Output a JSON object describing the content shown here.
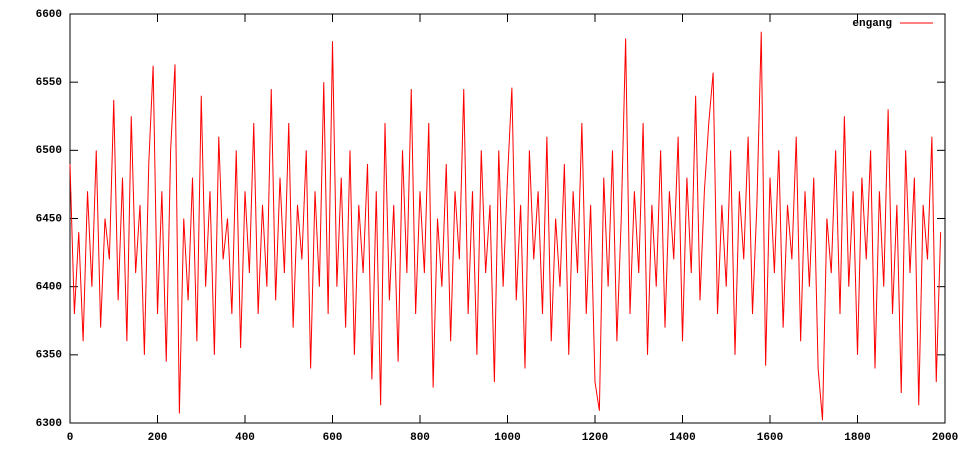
{
  "chart_data": {
    "type": "line",
    "x": [
      0,
      10,
      20,
      30,
      40,
      50,
      60,
      70,
      80,
      90,
      100,
      110,
      120,
      130,
      140,
      150,
      160,
      170,
      180,
      190,
      200,
      210,
      220,
      230,
      240,
      250,
      260,
      270,
      280,
      290,
      300,
      310,
      320,
      330,
      340,
      350,
      360,
      370,
      380,
      390,
      400,
      410,
      420,
      430,
      440,
      450,
      460,
      470,
      480,
      490,
      500,
      510,
      520,
      530,
      540,
      550,
      560,
      570,
      580,
      590,
      600,
      610,
      620,
      630,
      640,
      650,
      660,
      670,
      680,
      690,
      700,
      710,
      720,
      730,
      740,
      750,
      760,
      770,
      780,
      790,
      800,
      810,
      820,
      830,
      840,
      850,
      860,
      870,
      880,
      890,
      900,
      910,
      920,
      930,
      940,
      950,
      960,
      970,
      980,
      990,
      1000,
      1010,
      1020,
      1030,
      1040,
      1050,
      1060,
      1070,
      1080,
      1090,
      1100,
      1110,
      1120,
      1130,
      1140,
      1150,
      1160,
      1170,
      1180,
      1190,
      1200,
      1210,
      1220,
      1230,
      1240,
      1250,
      1260,
      1270,
      1280,
      1290,
      1300,
      1310,
      1320,
      1330,
      1340,
      1350,
      1360,
      1370,
      1380,
      1390,
      1400,
      1410,
      1420,
      1430,
      1440,
      1450,
      1460,
      1470,
      1480,
      1490,
      1500,
      1510,
      1520,
      1530,
      1540,
      1550,
      1560,
      1570,
      1580,
      1590,
      1600,
      1610,
      1620,
      1630,
      1640,
      1650,
      1660,
      1670,
      1680,
      1690,
      1700,
      1710,
      1720,
      1730,
      1740,
      1750,
      1760,
      1770,
      1780,
      1790,
      1800,
      1810,
      1820,
      1830,
      1840,
      1850,
      1860,
      1870,
      1880,
      1890,
      1900,
      1910,
      1920,
      1930,
      1940,
      1950,
      1960,
      1970,
      1980,
      1990
    ],
    "series": [
      {
        "name": "engang",
        "color": "#ff0000",
        "values": [
          6490,
          6380,
          6440,
          6360,
          6470,
          6400,
          6500,
          6370,
          6450,
          6420,
          6537,
          6390,
          6480,
          6360,
          6525,
          6410,
          6460,
          6350,
          6490,
          6562,
          6380,
          6470,
          6345,
          6500,
          6563,
          6307,
          6450,
          6390,
          6480,
          6360,
          6540,
          6400,
          6470,
          6350,
          6510,
          6420,
          6450,
          6380,
          6500,
          6355,
          6470,
          6410,
          6520,
          6380,
          6460,
          6400,
          6545,
          6390,
          6480,
          6410,
          6520,
          6370,
          6460,
          6420,
          6500,
          6340,
          6470,
          6400,
          6550,
          6380,
          6580,
          6400,
          6480,
          6370,
          6500,
          6350,
          6460,
          6410,
          6490,
          6332,
          6470,
          6313,
          6520,
          6390,
          6460,
          6345,
          6500,
          6410,
          6545,
          6380,
          6470,
          6410,
          6520,
          6326,
          6450,
          6400,
          6490,
          6360,
          6470,
          6420,
          6545,
          6380,
          6470,
          6350,
          6500,
          6410,
          6460,
          6330,
          6500,
          6400,
          6480,
          6546,
          6390,
          6460,
          6340,
          6500,
          6420,
          6470,
          6380,
          6510,
          6360,
          6450,
          6400,
          6490,
          6350,
          6470,
          6410,
          6520,
          6380,
          6460,
          6330,
          6309,
          6480,
          6400,
          6500,
          6360,
          6450,
          6582,
          6380,
          6470,
          6410,
          6520,
          6350,
          6460,
          6400,
          6500,
          6370,
          6470,
          6420,
          6510,
          6360,
          6480,
          6410,
          6540,
          6390,
          6470,
          6520,
          6557,
          6380,
          6460,
          6400,
          6500,
          6350,
          6470,
          6420,
          6510,
          6380,
          6460,
          6587,
          6342,
          6480,
          6410,
          6500,
          6370,
          6460,
          6420,
          6510,
          6360,
          6470,
          6400,
          6480,
          6340,
          6302,
          6450,
          6410,
          6500,
          6380,
          6525,
          6400,
          6470,
          6350,
          6480,
          6420,
          6500,
          6340,
          6470,
          6400,
          6530,
          6380,
          6460,
          6322,
          6500,
          6410,
          6480,
          6313,
          6460,
          6420,
          6510,
          6330,
          6440
        ]
      }
    ],
    "xlim": [
      0,
      2000
    ],
    "xticks": [
      0,
      200,
      400,
      600,
      800,
      1000,
      1200,
      1400,
      1600,
      1800,
      2000
    ],
    "ylim": [
      6300,
      6600
    ],
    "yticks": [
      6300,
      6350,
      6400,
      6450,
      6500,
      6550,
      6600
    ],
    "legend": "top-right"
  }
}
